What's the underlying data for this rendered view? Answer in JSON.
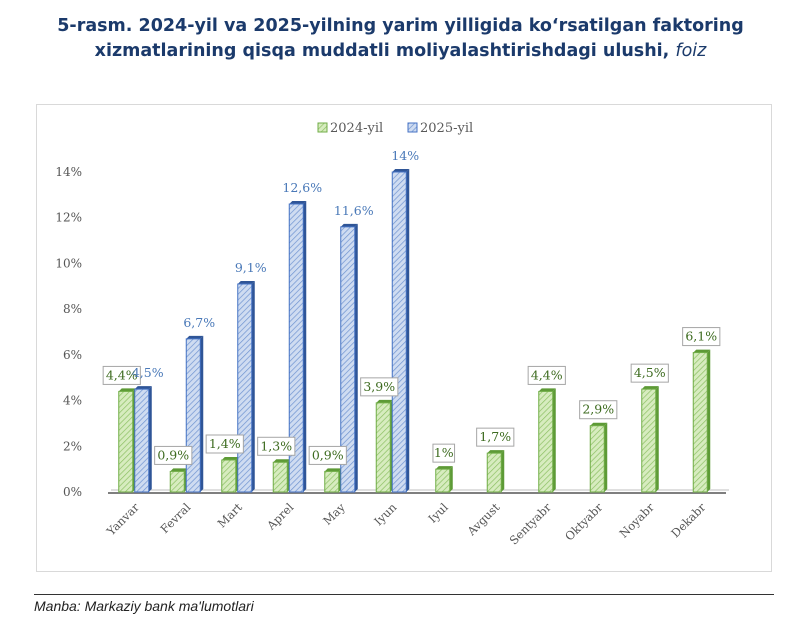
{
  "title": {
    "main": "5-rasm. 2024-yil va 2025-yilning yarim yilligida koʻrsatilgan faktoring xizmatlarining qisqa muddatli moliyalashtirishdagi ulushi,",
    "unit": "foiz"
  },
  "source": "Manba: Markaziy bank ma'lumotlari",
  "colors": {
    "series_2024_fill": "#c9e5a8",
    "series_2024_stroke": "#70ad47",
    "series_2024_label": "#3d6b1f",
    "series_2025_fill": "#b4c7e7",
    "series_2025_stroke": "#4472c4",
    "series_2025_label": "#4a79b8",
    "axis_text": "#555555"
  },
  "chart_data": {
    "type": "bar",
    "categories": [
      "Yanvar",
      "Fevral",
      "Mart",
      "Aprel",
      "May",
      "Iyun",
      "Iyul",
      "Avgust",
      "Sentyabr",
      "Oktyabr",
      "Noyabr",
      "Dekabr"
    ],
    "series": [
      {
        "name": "2024-yil",
        "values": [
          4.4,
          0.9,
          1.4,
          1.3,
          0.9,
          3.9,
          1,
          1.7,
          4.4,
          2.9,
          4.5,
          6.1
        ],
        "labels": [
          "4,4%",
          "0,9%",
          "1,4%",
          "1,3%",
          "0,9%",
          "3,9%",
          "1%",
          "1,7%",
          "4,4%",
          "2,9%",
          "4,5%",
          "6,1%"
        ]
      },
      {
        "name": "2025-yil",
        "values": [
          4.5,
          6.7,
          9.1,
          12.6,
          11.6,
          14,
          null,
          null,
          null,
          null,
          null,
          null
        ],
        "labels": [
          "4,5%",
          "6,7%",
          "9,1%",
          "12,6%",
          "11,6%",
          "14%",
          null,
          null,
          null,
          null,
          null,
          null
        ]
      }
    ],
    "yticks": [
      "0%",
      "2%",
      "4%",
      "6%",
      "8%",
      "10%",
      "12%",
      "14%"
    ],
    "ylim": [
      0,
      14
    ],
    "grid": false,
    "legend_position": "top-center"
  }
}
